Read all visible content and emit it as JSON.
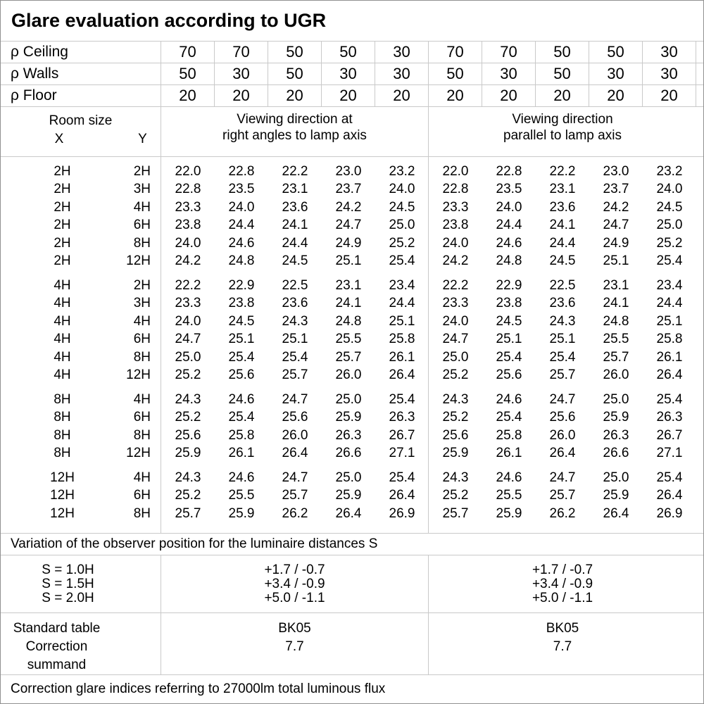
{
  "title": "Glare evaluation according to UGR",
  "reflectance": [
    {
      "label": "ρ Ceiling",
      "values": [
        "70",
        "70",
        "50",
        "50",
        "30",
        "70",
        "70",
        "50",
        "50",
        "30"
      ]
    },
    {
      "label": "ρ Walls",
      "values": [
        "50",
        "30",
        "50",
        "30",
        "30",
        "50",
        "30",
        "50",
        "30",
        "30"
      ]
    },
    {
      "label": "ρ Floor",
      "values": [
        "20",
        "20",
        "20",
        "20",
        "20",
        "20",
        "20",
        "20",
        "20",
        "20"
      ]
    }
  ],
  "room_size": {
    "label": "Room size",
    "x": "X",
    "y": "Y"
  },
  "group_headers": [
    {
      "line1": "Viewing direction at",
      "line2": "right angles to lamp axis"
    },
    {
      "line1": "Viewing direction",
      "line2": "parallel to lamp axis"
    }
  ],
  "ugr_groups": [
    {
      "rows": [
        {
          "x": "2H",
          "y": "2H",
          "right": [
            "22.0",
            "22.8",
            "22.2",
            "23.0",
            "23.2"
          ],
          "parallel": [
            "22.0",
            "22.8",
            "22.2",
            "23.0",
            "23.2"
          ]
        },
        {
          "x": "2H",
          "y": "3H",
          "right": [
            "22.8",
            "23.5",
            "23.1",
            "23.7",
            "24.0"
          ],
          "parallel": [
            "22.8",
            "23.5",
            "23.1",
            "23.7",
            "24.0"
          ]
        },
        {
          "x": "2H",
          "y": "4H",
          "right": [
            "23.3",
            "24.0",
            "23.6",
            "24.2",
            "24.5"
          ],
          "parallel": [
            "23.3",
            "24.0",
            "23.6",
            "24.2",
            "24.5"
          ]
        },
        {
          "x": "2H",
          "y": "6H",
          "right": [
            "23.8",
            "24.4",
            "24.1",
            "24.7",
            "25.0"
          ],
          "parallel": [
            "23.8",
            "24.4",
            "24.1",
            "24.7",
            "25.0"
          ]
        },
        {
          "x": "2H",
          "y": "8H",
          "right": [
            "24.0",
            "24.6",
            "24.4",
            "24.9",
            "25.2"
          ],
          "parallel": [
            "24.0",
            "24.6",
            "24.4",
            "24.9",
            "25.2"
          ]
        },
        {
          "x": "2H",
          "y": "12H",
          "right": [
            "24.2",
            "24.8",
            "24.5",
            "25.1",
            "25.4"
          ],
          "parallel": [
            "24.2",
            "24.8",
            "24.5",
            "25.1",
            "25.4"
          ]
        }
      ]
    },
    {
      "rows": [
        {
          "x": "4H",
          "y": "2H",
          "right": [
            "22.2",
            "22.9",
            "22.5",
            "23.1",
            "23.4"
          ],
          "parallel": [
            "22.2",
            "22.9",
            "22.5",
            "23.1",
            "23.4"
          ]
        },
        {
          "x": "4H",
          "y": "3H",
          "right": [
            "23.3",
            "23.8",
            "23.6",
            "24.1",
            "24.4"
          ],
          "parallel": [
            "23.3",
            "23.8",
            "23.6",
            "24.1",
            "24.4"
          ]
        },
        {
          "x": "4H",
          "y": "4H",
          "right": [
            "24.0",
            "24.5",
            "24.3",
            "24.8",
            "25.1"
          ],
          "parallel": [
            "24.0",
            "24.5",
            "24.3",
            "24.8",
            "25.1"
          ]
        },
        {
          "x": "4H",
          "y": "6H",
          "right": [
            "24.7",
            "25.1",
            "25.1",
            "25.5",
            "25.8"
          ],
          "parallel": [
            "24.7",
            "25.1",
            "25.1",
            "25.5",
            "25.8"
          ]
        },
        {
          "x": "4H",
          "y": "8H",
          "right": [
            "25.0",
            "25.4",
            "25.4",
            "25.7",
            "26.1"
          ],
          "parallel": [
            "25.0",
            "25.4",
            "25.4",
            "25.7",
            "26.1"
          ]
        },
        {
          "x": "4H",
          "y": "12H",
          "right": [
            "25.2",
            "25.6",
            "25.7",
            "26.0",
            "26.4"
          ],
          "parallel": [
            "25.2",
            "25.6",
            "25.7",
            "26.0",
            "26.4"
          ]
        }
      ]
    },
    {
      "rows": [
        {
          "x": "8H",
          "y": "4H",
          "right": [
            "24.3",
            "24.6",
            "24.7",
            "25.0",
            "25.4"
          ],
          "parallel": [
            "24.3",
            "24.6",
            "24.7",
            "25.0",
            "25.4"
          ]
        },
        {
          "x": "8H",
          "y": "6H",
          "right": [
            "25.2",
            "25.4",
            "25.6",
            "25.9",
            "26.3"
          ],
          "parallel": [
            "25.2",
            "25.4",
            "25.6",
            "25.9",
            "26.3"
          ]
        },
        {
          "x": "8H",
          "y": "8H",
          "right": [
            "25.6",
            "25.8",
            "26.0",
            "26.3",
            "26.7"
          ],
          "parallel": [
            "25.6",
            "25.8",
            "26.0",
            "26.3",
            "26.7"
          ]
        },
        {
          "x": "8H",
          "y": "12H",
          "right": [
            "25.9",
            "26.1",
            "26.4",
            "26.6",
            "27.1"
          ],
          "parallel": [
            "25.9",
            "26.1",
            "26.4",
            "26.6",
            "27.1"
          ]
        }
      ]
    },
    {
      "rows": [
        {
          "x": "12H",
          "y": "4H",
          "right": [
            "24.3",
            "24.6",
            "24.7",
            "25.0",
            "25.4"
          ],
          "parallel": [
            "24.3",
            "24.6",
            "24.7",
            "25.0",
            "25.4"
          ]
        },
        {
          "x": "12H",
          "y": "6H",
          "right": [
            "25.2",
            "25.5",
            "25.7",
            "25.9",
            "26.4"
          ],
          "parallel": [
            "25.2",
            "25.5",
            "25.7",
            "25.9",
            "26.4"
          ]
        },
        {
          "x": "12H",
          "y": "8H",
          "right": [
            "25.7",
            "25.9",
            "26.2",
            "26.4",
            "26.9"
          ],
          "parallel": [
            "25.7",
            "25.9",
            "26.2",
            "26.4",
            "26.9"
          ]
        }
      ]
    }
  ],
  "variation_note": "Variation of the observer position for the luminaire distances S",
  "s_table": {
    "rows": [
      {
        "label": "S = 1.0H",
        "right": "+1.7 / -0.7",
        "parallel": "+1.7 / -0.7"
      },
      {
        "label": "S = 1.5H",
        "right": "+3.4 / -0.9",
        "parallel": "+3.4 / -0.9"
      },
      {
        "label": "S = 2.0H",
        "right": "+5.0 / -1.1",
        "parallel": "+5.0 / -1.1"
      }
    ]
  },
  "standard_table": {
    "rows": [
      {
        "label": "Standard table",
        "right": "BK05",
        "parallel": "BK05"
      },
      {
        "label": "Correction summand",
        "right": "7.7",
        "parallel": "7.7"
      }
    ]
  },
  "footer_note": "Correction glare indices referring to 27000lm total luminous flux"
}
